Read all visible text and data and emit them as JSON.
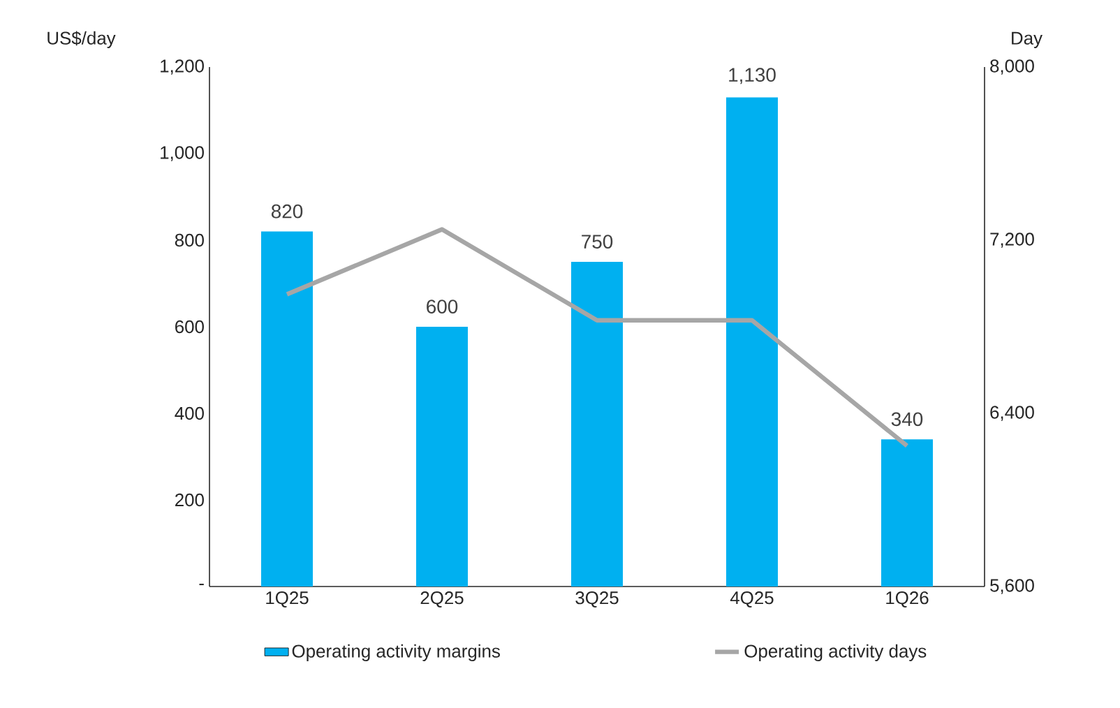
{
  "chart_data": {
    "type": "bar",
    "ylabel": "US$/day",
    "y2label": "Day",
    "categories": [
      "1Q25",
      "2Q25",
      "3Q25",
      "4Q25",
      "1Q26"
    ],
    "series": [
      {
        "name": "Operating activity margins",
        "color": "#00b0f0",
        "values": [
          820,
          600,
          750,
          1130,
          340
        ],
        "value_labels": [
          "820",
          "600",
          "750",
          "1,130",
          "340"
        ]
      },
      {
        "name": "Operating activity days",
        "type": "line",
        "axis": "y2",
        "color": "#a6a6a6",
        "values": [
          6950,
          7250,
          6830,
          6830,
          6250
        ]
      }
    ],
    "ylim": [
      0,
      1200
    ],
    "yticks": [
      {
        "value": 0,
        "label": "-"
      },
      200,
      400,
      600,
      800,
      {
        "value": 1000,
        "label": "1,000"
      },
      {
        "value": 1200,
        "label": "1,200"
      }
    ],
    "y2lim": [
      5600,
      8000
    ],
    "y2ticks": [
      {
        "value": 5600,
        "label": "5,600"
      },
      {
        "value": 6400,
        "label": "6,400"
      },
      {
        "value": 7200,
        "label": "7,200"
      },
      {
        "value": 8000,
        "label": "8,000"
      }
    ],
    "grid": false,
    "legend": "bottom",
    "marker": "none",
    "line_style": "solid"
  }
}
